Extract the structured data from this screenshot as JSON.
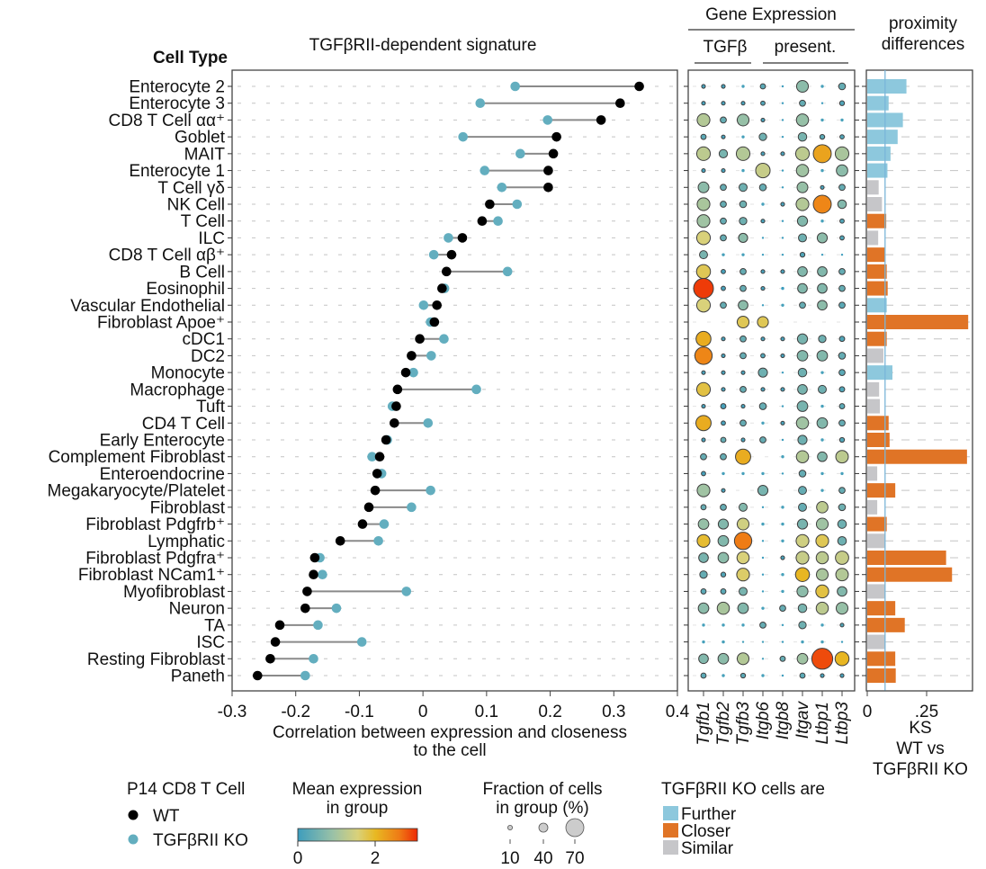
{
  "chart_data": [
    {
      "type": "scatter",
      "subtype": "dumbbell",
      "title": "TGFβRII-dependent signature",
      "ylabel": "Cell Type",
      "xlabel": "Correlation between expression and closeness to the cell",
      "xlabel_lines": [
        "Correlation between expression and closeness",
        "to the cell"
      ],
      "xlim": [
        -0.3,
        0.4
      ],
      "xticks": [
        -0.3,
        -0.2,
        -0.1,
        0,
        0.1,
        0.2,
        0.3,
        0.4
      ],
      "xtick_labels": [
        "-0.3",
        "-0.2",
        "-0.1",
        "0",
        "0.1",
        "0.2",
        "0.3",
        "0.4"
      ],
      "grid": "horizontal dashed",
      "categories": [
        "Enterocyte 2",
        "Enterocyte 3",
        "CD8 T Cell αα⁺",
        "Goblet",
        "MAIT",
        "Enterocyte 1",
        "T Cell γδ",
        "NK Cell",
        "T Cell",
        "ILC",
        "CD8 T Cell αβ⁺",
        "B Cell",
        "Eosinophil",
        "Vascular Endothelial",
        "Fibroblast Apoe⁺",
        "cDC1",
        "DC2",
        "Monocyte",
        "Macrophage",
        "Tuft",
        "CD4 T Cell",
        "Early Enterocyte",
        "Complement Fibroblast",
        "Enteroendocrine",
        "Megakaryocyte/Platelet",
        "Fibroblast",
        "Fibroblast Pdgfrb⁺",
        "Lymphatic",
        "Fibroblast Pdgfra⁺",
        "Fibroblast NCam1⁺",
        "Myofibroblast",
        "Neuron",
        "TA",
        "ISC",
        "Resting Fibroblast",
        "Paneth"
      ],
      "series": [
        {
          "name": "WT",
          "color": "#000000",
          "values": [
            0.34,
            0.31,
            0.28,
            0.21,
            0.205,
            0.197,
            0.197,
            0.105,
            0.093,
            0.062,
            0.045,
            0.037,
            0.03,
            0.022,
            0.018,
            -0.005,
            -0.018,
            -0.027,
            -0.04,
            -0.042,
            -0.045,
            -0.058,
            -0.068,
            -0.072,
            -0.075,
            -0.085,
            -0.095,
            -0.13,
            -0.17,
            -0.172,
            -0.182,
            -0.185,
            -0.225,
            -0.232,
            -0.24,
            -0.26
          ]
        },
        {
          "name": "TGFβRII KO",
          "color": "#63aebf",
          "values": [
            0.145,
            0.09,
            0.196,
            0.063,
            0.153,
            0.097,
            0.124,
            0.148,
            0.118,
            0.04,
            0.017,
            0.133,
            0.034,
            0.001,
            0.012,
            0.033,
            0.013,
            -0.015,
            0.084,
            -0.048,
            0.008,
            -0.056,
            -0.08,
            -0.065,
            0.012,
            -0.018,
            -0.061,
            -0.07,
            -0.162,
            -0.158,
            -0.026,
            -0.136,
            -0.165,
            -0.096,
            -0.172,
            -0.185
          ]
        }
      ]
    },
    {
      "type": "heatmap",
      "subtype": "dotplot",
      "title": "Gene Expression",
      "groups": [
        {
          "label": "TGFβ",
          "genes": [
            "Tgfb1",
            "Tgfb2",
            "Tgfb3"
          ]
        },
        {
          "label": "present.",
          "genes": [
            "Itgb6",
            "Itgb8",
            "Itgav",
            "Ltbp1",
            "Ltbp3"
          ]
        }
      ],
      "genes": [
        "Tgfb1",
        "Tgfb2",
        "Tgfb3",
        "Itgb6",
        "Itgb8",
        "Itgav",
        "Ltbp1",
        "Ltbp3"
      ],
      "rows_same_as": "Cell Type",
      "color_label": "Mean expression in group",
      "color_range": [
        0,
        3.2
      ],
      "size_label": "Fraction of cells in group (%)",
      "expression": [
        [
          0.1,
          0.1,
          0.1,
          0.3,
          0,
          0.8,
          0.1,
          0.4
        ],
        [
          0.1,
          0.1,
          0.1,
          0.2,
          0,
          0.4,
          0,
          0.2
        ],
        [
          1.2,
          0.4,
          0.9,
          0.1,
          0,
          0.9,
          0.1,
          0.1
        ],
        [
          0.3,
          0.1,
          0.1,
          0.5,
          0,
          0.6,
          0.3,
          0.2
        ],
        [
          1.3,
          0.6,
          1.2,
          0.1,
          0.1,
          1.3,
          2.3,
          1.1
        ],
        [
          0.1,
          0.1,
          0.1,
          1.4,
          0,
          1.0,
          0.1,
          0.8
        ],
        [
          0.8,
          0.4,
          0.5,
          0.4,
          0,
          0.9,
          0.1,
          0.4
        ],
        [
          1.1,
          0.4,
          0.5,
          0.1,
          0.1,
          1.2,
          2.6,
          0.7
        ],
        [
          1.0,
          0.4,
          0.5,
          0.1,
          0,
          0.7,
          0.1,
          0.2
        ],
        [
          1.6,
          0.4,
          0.8,
          0,
          0,
          0.5,
          0.8,
          0.2
        ],
        [
          0.6,
          0.1,
          0.1,
          0,
          0,
          0.2,
          0,
          0
        ],
        [
          1.8,
          0.1,
          0.4,
          0.1,
          0.1,
          0.7,
          0.7,
          0.4
        ],
        [
          3.1,
          0.1,
          0.4,
          0.1,
          0,
          0.7,
          0.7,
          0.4
        ],
        [
          1.6,
          0.4,
          0.8,
          0,
          0.1,
          0.4,
          0.8,
          0.3
        ],
        [
          null,
          null,
          1.8,
          1.8,
          null,
          null,
          null,
          null
        ],
        [
          2.2,
          0.1,
          0.4,
          0.1,
          0.1,
          0.6,
          0.5,
          0.2
        ],
        [
          2.6,
          0.1,
          0.4,
          0.2,
          0.1,
          0.7,
          0.7,
          0.4
        ],
        [
          0.1,
          0.1,
          0.1,
          0.5,
          0,
          0.5,
          0.1,
          0.3
        ],
        [
          1.9,
          0.1,
          0.4,
          0.1,
          0.1,
          0.6,
          0.5,
          0.2
        ],
        [
          0.1,
          0.1,
          0.1,
          0.4,
          0,
          0.6,
          0.1,
          0.3
        ],
        [
          2.2,
          0.1,
          0.4,
          0.1,
          0.1,
          1.0,
          0.7,
          0.4
        ],
        [
          0.1,
          0.4,
          0.1,
          0.4,
          0,
          0.5,
          0.1,
          0.2
        ],
        [
          0.4,
          0.4,
          2.2,
          null,
          0.1,
          1.2,
          0.7,
          1.3
        ],
        [
          0.1,
          0.1,
          0.1,
          0.1,
          0,
          0.4,
          0.1,
          0.1
        ],
        [
          1.0,
          0.1,
          null,
          0.6,
          null,
          0.4,
          0.1,
          0.4
        ],
        [
          0.4,
          0.4,
          0.7,
          0,
          0.1,
          0.4,
          1.3,
          0.5
        ],
        [
          0.9,
          0.7,
          1.5,
          0.1,
          0.1,
          0.6,
          1.0,
          0.5
        ],
        [
          2.0,
          0.7,
          2.7,
          0,
          0.1,
          1.5,
          1.8,
          0.5
        ],
        [
          0.6,
          0.8,
          1.6,
          0,
          0.1,
          1.4,
          1.3,
          1.4
        ],
        [
          0.4,
          0.2,
          1.7,
          0,
          0.1,
          2.1,
          1.1,
          1.2
        ],
        [
          0.3,
          0.3,
          0.6,
          0,
          0.1,
          0.8,
          1.9,
          0.7
        ],
        [
          0.8,
          1.1,
          0.7,
          0.1,
          0.4,
          0.6,
          1.3,
          0.9
        ],
        [
          0.1,
          0.1,
          0.1,
          0.4,
          0,
          0.5,
          0.1,
          0.2
        ],
        [
          0.1,
          0.1,
          0.1,
          0.1,
          0,
          0.1,
          0.1,
          0
        ],
        [
          0.7,
          0.8,
          1.2,
          0.1,
          0.4,
          1.0,
          3.0,
          2.1
        ],
        [
          0.3,
          0.1,
          0.3,
          0.1,
          0,
          0.3,
          0.1,
          0.1
        ]
      ],
      "fraction_pct": [
        [
          3,
          3,
          2,
          6,
          1,
          30,
          2,
          10
        ],
        [
          3,
          3,
          3,
          4,
          1,
          8,
          1,
          5
        ],
        [
          35,
          8,
          30,
          3,
          1,
          32,
          2,
          2
        ],
        [
          6,
          3,
          2,
          12,
          1,
          16,
          5,
          4
        ],
        [
          40,
          15,
          40,
          3,
          3,
          40,
          70,
          40
        ],
        [
          3,
          3,
          2,
          45,
          1,
          32,
          2,
          28
        ],
        [
          25,
          8,
          14,
          10,
          1,
          25,
          3,
          8
        ],
        [
          35,
          8,
          10,
          2,
          3,
          35,
          70,
          16
        ],
        [
          35,
          8,
          12,
          3,
          1,
          22,
          2,
          4
        ],
        [
          40,
          8,
          18,
          1,
          1,
          14,
          22,
          4
        ],
        [
          14,
          2,
          2,
          1,
          1,
          5,
          1,
          1
        ],
        [
          42,
          4,
          8,
          3,
          3,
          20,
          20,
          8
        ],
        [
          85,
          4,
          8,
          3,
          2,
          20,
          20,
          8
        ],
        [
          40,
          8,
          20,
          1,
          2,
          8,
          20,
          8
        ],
        [
          0,
          0,
          30,
          26,
          0,
          0,
          0,
          0
        ],
        [
          48,
          3,
          8,
          3,
          3,
          22,
          12,
          6
        ],
        [
          65,
          3,
          8,
          4,
          3,
          24,
          24,
          10
        ],
        [
          3,
          3,
          3,
          18,
          1,
          16,
          2,
          8
        ],
        [
          40,
          3,
          8,
          3,
          3,
          20,
          14,
          6
        ],
        [
          3,
          6,
          3,
          10,
          1,
          24,
          2,
          6
        ],
        [
          50,
          4,
          8,
          2,
          3,
          32,
          24,
          8
        ],
        [
          3,
          6,
          3,
          8,
          1,
          18,
          2,
          5
        ],
        [
          8,
          8,
          50,
          0,
          2,
          32,
          20,
          34
        ],
        [
          4,
          2,
          2,
          2,
          1,
          10,
          2,
          2
        ],
        [
          35,
          3,
          0,
          22,
          0,
          14,
          2,
          8
        ],
        [
          6,
          8,
          14,
          1,
          2,
          14,
          28,
          10
        ],
        [
          24,
          22,
          30,
          2,
          2,
          22,
          30,
          16
        ],
        [
          35,
          24,
          65,
          1,
          2,
          35,
          35,
          16
        ],
        [
          20,
          24,
          32,
          1,
          3,
          35,
          32,
          38
        ],
        [
          12,
          5,
          35,
          1,
          2,
          42,
          30,
          34
        ],
        [
          6,
          6,
          14,
          1,
          2,
          26,
          36,
          20
        ],
        [
          24,
          32,
          24,
          2,
          8,
          16,
          32,
          30
        ],
        [
          2,
          2,
          2,
          8,
          1,
          12,
          2,
          3
        ],
        [
          2,
          2,
          1,
          1,
          1,
          2,
          2,
          1
        ],
        [
          20,
          24,
          30,
          1,
          6,
          24,
          95,
          42
        ],
        [
          6,
          2,
          5,
          2,
          1,
          6,
          3,
          3
        ]
      ],
      "colorbar_ticks": [
        0,
        2
      ],
      "size_legend": [
        10,
        40,
        70
      ]
    },
    {
      "type": "bar",
      "orientation": "horizontal",
      "title": "proximity differences",
      "xlabel": "KS WT vs TGFβRII KO",
      "xlabel_lines": [
        "KS",
        "WT vs",
        "TGFβRII KO"
      ],
      "xlim": [
        0,
        0.44
      ],
      "xticks": [
        0,
        0.25
      ],
      "xtick_labels": [
        "0",
        ".25"
      ],
      "threshold_line": 0.075,
      "rows_same_as": "Cell Type",
      "values": [
        0.165,
        0.09,
        0.15,
        0.128,
        0.098,
        0.085,
        0.048,
        0.062,
        0.08,
        0.046,
        0.076,
        0.082,
        0.086,
        0.082,
        0.425,
        0.082,
        0.068,
        0.106,
        0.05,
        0.053,
        0.09,
        0.094,
        0.42,
        0.042,
        0.118,
        0.042,
        0.082,
        0.076,
        0.332,
        0.357,
        0.074,
        0.118,
        0.158,
        0.074,
        0.118,
        0.12
      ],
      "status": [
        "Further",
        "Further",
        "Further",
        "Further",
        "Further",
        "Further",
        "Similar",
        "Similar",
        "Closer",
        "Similar",
        "Closer",
        "Closer",
        "Closer",
        "Further",
        "Closer",
        "Closer",
        "Similar",
        "Further",
        "Similar",
        "Similar",
        "Closer",
        "Closer",
        "Closer",
        "Similar",
        "Closer",
        "Similar",
        "Closer",
        "Similar",
        "Closer",
        "Closer",
        "Similar",
        "Closer",
        "Closer",
        "Similar",
        "Closer",
        "Closer"
      ],
      "status_colors": {
        "Further": "#8dc8dd",
        "Closer": "#e07426",
        "Similar": "#c6c6c9"
      }
    }
  ],
  "legends": {
    "genotype": {
      "title": "P14 CD8 T Cell",
      "items": [
        {
          "label": "WT",
          "color": "#000000"
        },
        {
          "label": "TGFβRII KO",
          "color": "#63aebf"
        }
      ]
    },
    "expression": {
      "title_lines": [
        "Mean expression",
        "in group"
      ],
      "ticks": [
        "0",
        "2"
      ]
    },
    "fraction": {
      "title_lines": [
        "Fraction of cells",
        "in group (%)"
      ],
      "ticks": [
        "10",
        "40",
        "70"
      ]
    },
    "proximity": {
      "title": "TGFβRII KO cells are",
      "items": [
        {
          "label": "Further",
          "color": "#8dc8dd"
        },
        {
          "label": "Closer",
          "color": "#e07426"
        },
        {
          "label": "Similar",
          "color": "#c6c6c9"
        }
      ]
    }
  }
}
